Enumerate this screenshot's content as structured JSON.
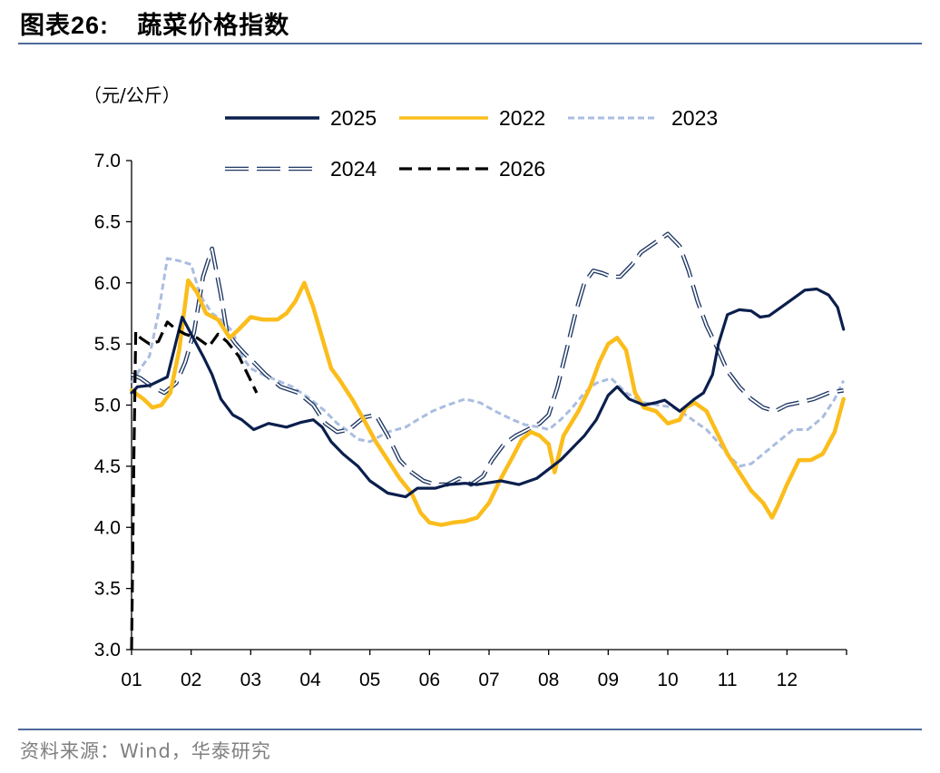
{
  "header": {
    "label": "图表",
    "number": "26:",
    "title": "蔬菜价格指数"
  },
  "source": "资料来源：Wind，华泰研究",
  "chart_data": {
    "type": "line",
    "unit_label": "（元/公斤）",
    "ylim": [
      3.0,
      7.0
    ],
    "y_ticks": [
      "3.0",
      "3.5",
      "4.0",
      "4.5",
      "5.0",
      "5.5",
      "6.0",
      "6.5",
      "7.0"
    ],
    "x_ticks": [
      "01",
      "02",
      "03",
      "04",
      "05",
      "06",
      "07",
      "08",
      "09",
      "10",
      "11",
      "12"
    ],
    "x_domain": [
      1,
      13
    ],
    "legend_position": "top",
    "series": [
      {
        "name": "2025",
        "color": "#0b1f4d",
        "style": "solid",
        "points": [
          [
            1.0,
            5.1
          ],
          [
            1.1,
            5.15
          ],
          [
            1.3,
            5.16
          ],
          [
            1.6,
            5.23
          ],
          [
            1.85,
            5.72
          ],
          [
            2.0,
            5.58
          ],
          [
            2.2,
            5.4
          ],
          [
            2.35,
            5.25
          ],
          [
            2.5,
            5.05
          ],
          [
            2.7,
            4.92
          ],
          [
            2.85,
            4.88
          ],
          [
            3.05,
            4.8
          ],
          [
            3.3,
            4.85
          ],
          [
            3.6,
            4.82
          ],
          [
            3.85,
            4.86
          ],
          [
            4.05,
            4.88
          ],
          [
            4.2,
            4.82
          ],
          [
            4.35,
            4.7
          ],
          [
            4.55,
            4.6
          ],
          [
            4.8,
            4.5
          ],
          [
            5.0,
            4.38
          ],
          [
            5.3,
            4.28
          ],
          [
            5.6,
            4.25
          ],
          [
            5.8,
            4.32
          ],
          [
            6.1,
            4.32
          ],
          [
            6.3,
            4.35
          ],
          [
            6.6,
            4.36
          ],
          [
            6.8,
            4.35
          ],
          [
            7.2,
            4.38
          ],
          [
            7.5,
            4.35
          ],
          [
            7.8,
            4.4
          ],
          [
            8.2,
            4.55
          ],
          [
            8.4,
            4.65
          ],
          [
            8.6,
            4.75
          ],
          [
            8.8,
            4.88
          ],
          [
            9.0,
            5.08
          ],
          [
            9.15,
            5.15
          ],
          [
            9.35,
            5.05
          ],
          [
            9.6,
            5.0
          ],
          [
            9.8,
            5.02
          ],
          [
            9.95,
            5.04
          ],
          [
            10.2,
            4.95
          ],
          [
            10.45,
            5.05
          ],
          [
            10.6,
            5.1
          ],
          [
            10.75,
            5.25
          ],
          [
            10.85,
            5.5
          ],
          [
            11.0,
            5.74
          ],
          [
            11.2,
            5.78
          ],
          [
            11.4,
            5.77
          ],
          [
            11.55,
            5.72
          ],
          [
            11.7,
            5.73
          ],
          [
            11.9,
            5.8
          ],
          [
            12.1,
            5.87
          ],
          [
            12.3,
            5.94
          ],
          [
            12.5,
            5.95
          ],
          [
            12.7,
            5.9
          ],
          [
            12.85,
            5.8
          ],
          [
            12.95,
            5.62
          ]
        ]
      },
      {
        "name": "2022",
        "color": "#fbbd1c",
        "style": "solid",
        "points": [
          [
            1.0,
            5.12
          ],
          [
            1.2,
            5.05
          ],
          [
            1.35,
            4.98
          ],
          [
            1.5,
            5.0
          ],
          [
            1.65,
            5.1
          ],
          [
            1.8,
            5.45
          ],
          [
            1.95,
            6.02
          ],
          [
            2.1,
            5.92
          ],
          [
            2.25,
            5.75
          ],
          [
            2.45,
            5.7
          ],
          [
            2.65,
            5.55
          ],
          [
            2.8,
            5.62
          ],
          [
            3.0,
            5.72
          ],
          [
            3.2,
            5.7
          ],
          [
            3.45,
            5.7
          ],
          [
            3.6,
            5.75
          ],
          [
            3.75,
            5.85
          ],
          [
            3.9,
            6.0
          ],
          [
            4.05,
            5.8
          ],
          [
            4.2,
            5.55
          ],
          [
            4.35,
            5.3
          ],
          [
            4.5,
            5.2
          ],
          [
            4.7,
            5.05
          ],
          [
            4.9,
            4.88
          ],
          [
            5.1,
            4.7
          ],
          [
            5.3,
            4.55
          ],
          [
            5.5,
            4.4
          ],
          [
            5.7,
            4.28
          ],
          [
            5.85,
            4.12
          ],
          [
            6.0,
            4.04
          ],
          [
            6.2,
            4.02
          ],
          [
            6.4,
            4.04
          ],
          [
            6.6,
            4.05
          ],
          [
            6.8,
            4.08
          ],
          [
            7.0,
            4.2
          ],
          [
            7.2,
            4.4
          ],
          [
            7.4,
            4.58
          ],
          [
            7.55,
            4.72
          ],
          [
            7.7,
            4.78
          ],
          [
            7.85,
            4.75
          ],
          [
            8.0,
            4.68
          ],
          [
            8.1,
            4.45
          ],
          [
            8.25,
            4.75
          ],
          [
            8.5,
            4.95
          ],
          [
            8.7,
            5.15
          ],
          [
            8.85,
            5.35
          ],
          [
            9.0,
            5.5
          ],
          [
            9.15,
            5.55
          ],
          [
            9.3,
            5.45
          ],
          [
            9.45,
            5.1
          ],
          [
            9.6,
            4.98
          ],
          [
            9.8,
            4.95
          ],
          [
            10.0,
            4.85
          ],
          [
            10.2,
            4.88
          ],
          [
            10.3,
            4.98
          ],
          [
            10.45,
            5.02
          ],
          [
            10.65,
            4.95
          ],
          [
            10.8,
            4.8
          ],
          [
            11.0,
            4.6
          ],
          [
            11.2,
            4.45
          ],
          [
            11.4,
            4.3
          ],
          [
            11.6,
            4.2
          ],
          [
            11.75,
            4.08
          ],
          [
            11.85,
            4.18
          ],
          [
            12.0,
            4.35
          ],
          [
            12.2,
            4.55
          ],
          [
            12.4,
            4.55
          ],
          [
            12.6,
            4.6
          ],
          [
            12.8,
            4.78
          ],
          [
            12.95,
            5.05
          ]
        ]
      },
      {
        "name": "2023",
        "color": "#aabde0",
        "style": "dotted",
        "points": [
          [
            1.0,
            5.18
          ],
          [
            1.15,
            5.3
          ],
          [
            1.3,
            5.4
          ],
          [
            1.45,
            5.75
          ],
          [
            1.6,
            6.2
          ],
          [
            1.8,
            6.18
          ],
          [
            2.0,
            6.15
          ],
          [
            2.15,
            5.9
          ],
          [
            2.35,
            5.75
          ],
          [
            2.5,
            5.7
          ],
          [
            2.7,
            5.6
          ],
          [
            2.85,
            5.4
          ],
          [
            3.0,
            5.3
          ],
          [
            3.2,
            5.25
          ],
          [
            3.45,
            5.2
          ],
          [
            3.7,
            5.15
          ],
          [
            4.0,
            5.05
          ],
          [
            4.25,
            4.95
          ],
          [
            4.45,
            4.85
          ],
          [
            4.6,
            4.8
          ],
          [
            4.8,
            4.72
          ],
          [
            5.0,
            4.7
          ],
          [
            5.3,
            4.78
          ],
          [
            5.6,
            4.82
          ],
          [
            5.8,
            4.88
          ],
          [
            6.05,
            4.95
          ],
          [
            6.3,
            5.0
          ],
          [
            6.6,
            5.05
          ],
          [
            6.85,
            5.02
          ],
          [
            7.1,
            4.95
          ],
          [
            7.4,
            4.88
          ],
          [
            7.6,
            4.84
          ],
          [
            7.85,
            4.82
          ],
          [
            8.0,
            4.8
          ],
          [
            8.2,
            4.88
          ],
          [
            8.4,
            4.98
          ],
          [
            8.6,
            5.1
          ],
          [
            8.8,
            5.18
          ],
          [
            9.05,
            5.22
          ],
          [
            9.3,
            5.1
          ],
          [
            9.6,
            5.02
          ],
          [
            9.85,
            5.0
          ],
          [
            10.1,
            4.98
          ],
          [
            10.3,
            4.92
          ],
          [
            10.5,
            4.85
          ],
          [
            10.65,
            4.8
          ],
          [
            10.8,
            4.72
          ],
          [
            11.0,
            4.6
          ],
          [
            11.2,
            4.5
          ],
          [
            11.4,
            4.52
          ],
          [
            11.6,
            4.6
          ],
          [
            11.85,
            4.7
          ],
          [
            12.1,
            4.8
          ],
          [
            12.35,
            4.8
          ],
          [
            12.6,
            4.9
          ],
          [
            12.8,
            5.05
          ],
          [
            12.95,
            5.2
          ]
        ]
      },
      {
        "name": "2024",
        "color": "#203864",
        "style": "double",
        "points": [
          [
            1.0,
            5.25
          ],
          [
            1.15,
            5.22
          ],
          [
            1.35,
            5.15
          ],
          [
            1.55,
            5.1
          ],
          [
            1.75,
            5.18
          ],
          [
            1.9,
            5.35
          ],
          [
            2.05,
            5.6
          ],
          [
            2.2,
            6.05
          ],
          [
            2.35,
            6.28
          ],
          [
            2.5,
            5.9
          ],
          [
            2.6,
            5.6
          ],
          [
            2.75,
            5.5
          ],
          [
            2.9,
            5.42
          ],
          [
            3.05,
            5.35
          ],
          [
            3.25,
            5.25
          ],
          [
            3.5,
            5.15
          ],
          [
            3.8,
            5.1
          ],
          [
            4.05,
            5.0
          ],
          [
            4.25,
            4.85
          ],
          [
            4.45,
            4.78
          ],
          [
            4.65,
            4.8
          ],
          [
            4.9,
            4.9
          ],
          [
            5.1,
            4.92
          ],
          [
            5.3,
            4.75
          ],
          [
            5.5,
            4.55
          ],
          [
            5.7,
            4.45
          ],
          [
            5.9,
            4.38
          ],
          [
            6.1,
            4.35
          ],
          [
            6.3,
            4.35
          ],
          [
            6.5,
            4.4
          ],
          [
            6.7,
            4.35
          ],
          [
            6.9,
            4.42
          ],
          [
            7.05,
            4.55
          ],
          [
            7.25,
            4.68
          ],
          [
            7.45,
            4.75
          ],
          [
            7.65,
            4.8
          ],
          [
            7.85,
            4.85
          ],
          [
            8.0,
            4.92
          ],
          [
            8.15,
            5.15
          ],
          [
            8.3,
            5.45
          ],
          [
            8.45,
            5.75
          ],
          [
            8.6,
            6.0
          ],
          [
            8.75,
            6.1
          ],
          [
            8.9,
            6.08
          ],
          [
            9.05,
            6.05
          ],
          [
            9.2,
            6.05
          ],
          [
            9.4,
            6.15
          ],
          [
            9.55,
            6.25
          ],
          [
            9.7,
            6.3
          ],
          [
            9.85,
            6.35
          ],
          [
            10.0,
            6.4
          ],
          [
            10.2,
            6.3
          ],
          [
            10.35,
            6.1
          ],
          [
            10.5,
            5.85
          ],
          [
            10.65,
            5.65
          ],
          [
            10.8,
            5.5
          ],
          [
            11.0,
            5.28
          ],
          [
            11.2,
            5.15
          ],
          [
            11.4,
            5.05
          ],
          [
            11.6,
            4.98
          ],
          [
            11.8,
            4.95
          ],
          [
            12.0,
            5.0
          ],
          [
            12.2,
            5.02
          ],
          [
            12.45,
            5.05
          ],
          [
            12.7,
            5.1
          ],
          [
            12.95,
            5.12
          ]
        ]
      },
      {
        "name": "2026",
        "color": "#000000",
        "style": "dashed",
        "points": [
          [
            1.0,
            3.0
          ],
          [
            1.04,
            4.6
          ],
          [
            1.07,
            5.6
          ],
          [
            1.15,
            5.55
          ],
          [
            1.3,
            5.5
          ],
          [
            1.45,
            5.52
          ],
          [
            1.6,
            5.68
          ],
          [
            1.75,
            5.62
          ],
          [
            1.9,
            5.58
          ],
          [
            2.1,
            5.55
          ],
          [
            2.3,
            5.48
          ],
          [
            2.45,
            5.58
          ],
          [
            2.6,
            5.52
          ],
          [
            2.8,
            5.4
          ],
          [
            2.95,
            5.25
          ],
          [
            3.1,
            5.1
          ]
        ]
      }
    ]
  }
}
